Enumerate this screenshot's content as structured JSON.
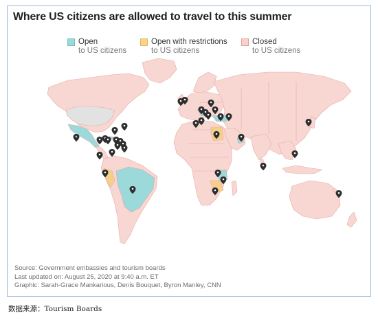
{
  "title": "Where US citizens are allowed to travel to this summer",
  "legend": [
    {
      "label": "Open",
      "sub": "to US citizens",
      "color": "#9bd9da",
      "border": "#6fc1c2"
    },
    {
      "label": "Open with restrictions",
      "sub": "to US citizens",
      "color": "#f8d58c",
      "border": "#e5b65a"
    },
    {
      "label": "Closed",
      "sub": "to US citizens",
      "color": "#f7d2cd",
      "border": "#e0a19b"
    }
  ],
  "colors": {
    "open": "#9bd9da",
    "restricted": "#f5d08a",
    "closed": "#f8d7d2",
    "borders": "#e6aaa3",
    "no_data": "#e2e2e2",
    "pin": "#2d2d2d"
  },
  "credits": {
    "source": "Source: Government embassies and tourism boards",
    "updated": "Last updated on: August 25, 2020 at 9:40 a.m. ET",
    "graphic": "Graphic: Sarah-Grace Mankarious, Denis Bouquet, Byron Manley, CNN"
  },
  "footer": "数据来源：Tourism Boards"
}
